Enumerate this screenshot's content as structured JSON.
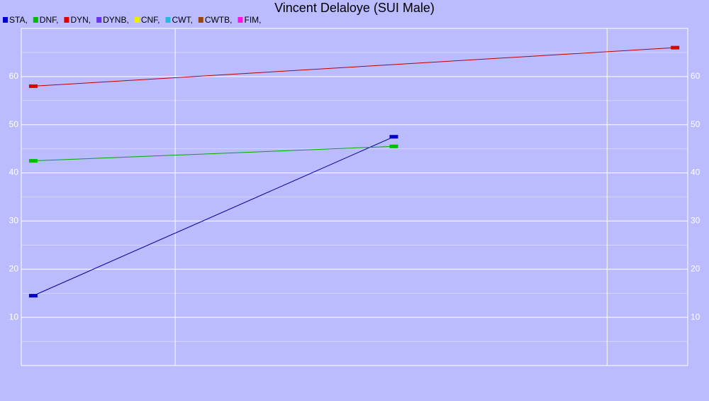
{
  "chart_data": {
    "type": "line",
    "title": "Vincent Delaloye (SUI Male)",
    "xlim": [
      0,
      100
    ],
    "x_grid": [
      23.1,
      87.9
    ],
    "ylim": [
      0,
      70
    ],
    "yticks": [
      10,
      20,
      30,
      40,
      50,
      60
    ],
    "y_minor_ticks": [
      5,
      15,
      25,
      35,
      45,
      55,
      65
    ],
    "grid": true,
    "series": [
      {
        "name": "STA,",
        "color": "#0000cc",
        "line_color": "#000099",
        "x": [
          1.8,
          55.9
        ],
        "values": [
          14.5,
          47.5
        ]
      },
      {
        "name": "DNF,",
        "color": "#00bb00",
        "line_color": "#00aa00",
        "x": [
          1.8,
          55.9
        ],
        "values": [
          42.5,
          45.5
        ]
      },
      {
        "name": "DYN,",
        "color": "#dd0000",
        "line_color": "#bb0000",
        "x": [
          1.8,
          98.1
        ],
        "values": [
          58,
          66
        ]
      },
      {
        "name": "DYNB,",
        "color": "#6633ee",
        "line_color": "#6633ee",
        "x": [],
        "values": []
      },
      {
        "name": "CNF,",
        "color": "#eeee00",
        "line_color": "#eeee00",
        "x": [],
        "values": []
      },
      {
        "name": "CWT,",
        "color": "#22bbdd",
        "line_color": "#22bbdd",
        "x": [],
        "values": []
      },
      {
        "name": "CWTB,",
        "color": "#994411",
        "line_color": "#994411",
        "x": [],
        "values": []
      },
      {
        "name": "FIM,",
        "color": "#ff11dd",
        "line_color": "#ff11dd",
        "x": [],
        "values": []
      }
    ]
  }
}
